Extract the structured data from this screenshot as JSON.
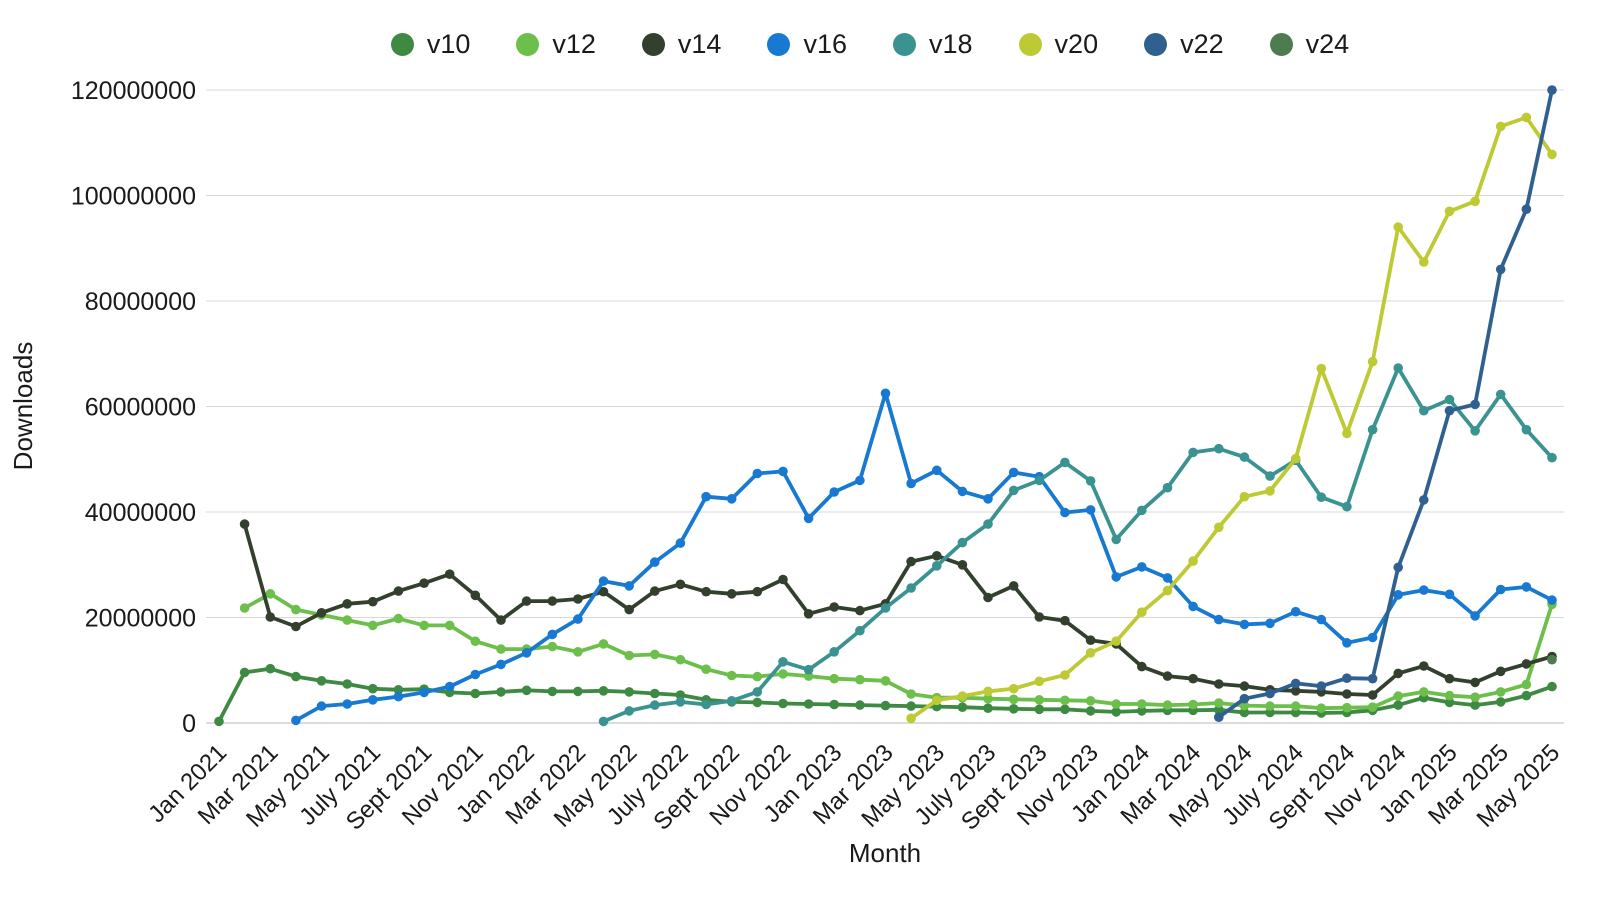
{
  "chart_data": {
    "type": "line",
    "title": "",
    "xlabel": "Month",
    "ylabel": "Downloads",
    "values_unit": "downloads_millions",
    "grid": true,
    "legend_position": "top",
    "ylim": [
      0,
      120000000
    ],
    "y_ticks": [
      0,
      20000000,
      40000000,
      60000000,
      80000000,
      100000000,
      120000000
    ],
    "y_tick_labels": [
      "0",
      "20000000",
      "40000000",
      "60000000",
      "80000000",
      "100000000",
      "120000000"
    ],
    "x_tick_every": 2,
    "months": [
      "Jan 2021",
      "Feb 2021",
      "Mar 2021",
      "Apr 2021",
      "May 2021",
      "June 2021",
      "July 2021",
      "Aug 2021",
      "Sept 2021",
      "Oct 2021",
      "Nov 2021",
      "Dec 2021",
      "Jan 2022",
      "Feb 2022",
      "Mar 2022",
      "Apr 2022",
      "May 2022",
      "June 2022",
      "July 2022",
      "Aug 2022",
      "Sept 2022",
      "Oct 2022",
      "Nov 2022",
      "Dec 2022",
      "Jan 2023",
      "Feb 2023",
      "Mar 2023",
      "Apr 2023",
      "May 2023",
      "June 2023",
      "July 2023",
      "Aug 2023",
      "Sept 2023",
      "Oct 2023",
      "Nov 2023",
      "Dec 2023",
      "Jan 2024",
      "Feb 2024",
      "Mar 2024",
      "Apr 2024",
      "May 2024",
      "June 2024",
      "July 2024",
      "Aug 2024",
      "Sept 2024",
      "Oct 2024",
      "Nov 2024",
      "Dec 2024",
      "Jan 2025",
      "Feb 2025",
      "Mar 2025",
      "Apr 2025",
      "May 2025"
    ],
    "series": [
      {
        "name": "v10",
        "color": "#3e8a43",
        "start_month_index": 0,
        "values_millions": [
          0.3,
          9.6,
          10.3,
          8.8,
          8.0,
          7.4,
          6.5,
          6.3,
          6.4,
          5.8,
          5.6,
          5.9,
          6.2,
          6.0,
          6.0,
          6.1,
          5.9,
          5.6,
          5.3,
          4.4,
          4.0,
          3.9,
          3.7,
          3.6,
          3.5,
          3.4,
          3.3,
          3.2,
          3.1,
          3.0,
          2.8,
          2.7,
          2.6,
          2.6,
          2.3,
          2.1,
          2.3,
          2.4,
          2.4,
          2.5,
          2.0,
          2.0,
          2.0,
          1.9,
          2.0,
          2.4,
          3.4,
          4.8,
          3.9,
          3.4,
          4.0,
          5.2,
          6.9
        ]
      },
      {
        "name": "v12",
        "color": "#6cbf4b",
        "start_month_index": 1,
        "values_millions": [
          21.8,
          24.5,
          21.5,
          20.5,
          19.5,
          18.5,
          19.8,
          18.5,
          18.5,
          15.5,
          14.0,
          14.0,
          14.5,
          13.5,
          15.0,
          12.8,
          13.0,
          12.0,
          10.2,
          9.0,
          8.8,
          9.3,
          8.9,
          8.4,
          8.2,
          8.0,
          5.5,
          4.8,
          4.8,
          4.6,
          4.5,
          4.4,
          4.3,
          4.2,
          3.6,
          3.6,
          3.4,
          3.5,
          3.8,
          3.3,
          3.2,
          3.2,
          2.8,
          2.9,
          3.0,
          5.1,
          5.9,
          5.2,
          4.9,
          5.9,
          7.3,
          22.5
        ]
      },
      {
        "name": "v14",
        "color": "#32402d",
        "start_month_index": 1,
        "values_millions": [
          37.7,
          20.1,
          18.3,
          20.9,
          22.6,
          23.0,
          25.0,
          26.5,
          28.2,
          24.2,
          19.5,
          23.1,
          23.1,
          23.5,
          24.9,
          21.5,
          25.0,
          26.3,
          24.9,
          24.5,
          24.9,
          27.2,
          20.7,
          22.0,
          21.3,
          22.6,
          30.6,
          31.7,
          30.0,
          23.8,
          26.0,
          20.1,
          19.4,
          15.7,
          15.0,
          10.7,
          8.9,
          8.4,
          7.4,
          7.0,
          6.3,
          6.1,
          5.9,
          5.5,
          5.3,
          9.4,
          10.8,
          8.4,
          7.7,
          9.8,
          11.2,
          12.6
        ]
      },
      {
        "name": "v16",
        "color": "#1779d2",
        "start_month_index": 3,
        "values_millions": [
          0.5,
          3.2,
          3.6,
          4.4,
          5.0,
          5.8,
          6.9,
          9.2,
          11.1,
          13.3,
          16.8,
          19.7,
          26.9,
          26.0,
          30.5,
          34.1,
          42.9,
          42.5,
          47.3,
          47.7,
          38.8,
          43.8,
          46.0,
          62.5,
          45.4,
          47.9,
          43.9,
          42.5,
          47.5,
          46.7,
          39.9,
          40.4,
          27.7,
          29.6,
          27.5,
          22.1,
          19.6,
          18.7,
          18.9,
          21.1,
          19.6,
          15.2,
          16.2,
          24.3,
          25.2,
          24.4,
          20.3,
          25.3,
          25.8,
          23.3
        ]
      },
      {
        "name": "v18",
        "color": "#3b9391",
        "start_month_index": 15,
        "values_millions": [
          0.3,
          2.3,
          3.4,
          4.0,
          3.5,
          4.2,
          5.9,
          11.6,
          10.1,
          13.5,
          17.5,
          21.8,
          25.6,
          29.8,
          34.2,
          37.7,
          44.1,
          46.0,
          49.4,
          45.9,
          34.8,
          40.3,
          44.6,
          51.3,
          52.0,
          50.4,
          46.8,
          49.8,
          42.8,
          41.0,
          55.6,
          67.3,
          59.2,
          61.3,
          55.4,
          62.3,
          55.6,
          50.3
        ]
      },
      {
        "name": "v20",
        "color": "#bdca33",
        "start_month_index": 27,
        "values_millions": [
          0.9,
          4.3,
          5.1,
          6.0,
          6.5,
          7.9,
          9.1,
          13.3,
          15.5,
          21.0,
          25.1,
          30.7,
          37.1,
          42.9,
          44.0,
          50.1,
          67.2,
          54.9,
          68.5,
          94.0,
          87.4,
          97.0,
          98.9,
          113.1,
          114.8,
          107.8
        ]
      },
      {
        "name": "v22",
        "color": "#2f608f",
        "start_month_index": 39,
        "values_millions": [
          1.1,
          4.6,
          5.6,
          7.5,
          7.0,
          8.5,
          8.4,
          29.5,
          42.3,
          59.2,
          60.4,
          86.0,
          97.4,
          120.0
        ]
      },
      {
        "name": "v24",
        "color": "#4e7c51",
        "start_month_index": 52,
        "values_millions": [
          12.0
        ]
      }
    ]
  }
}
